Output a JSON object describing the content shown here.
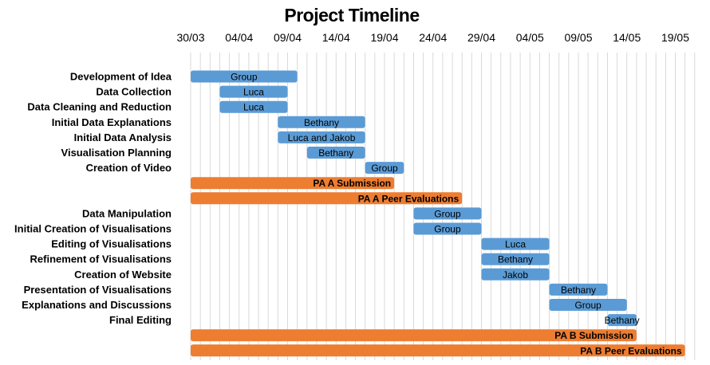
{
  "chart_data": {
    "type": "bar",
    "orientation": "horizontal-gantt",
    "title": "Project Timeline",
    "x_axis_position": "top",
    "xlim": [
      "30/03",
      "21/05"
    ],
    "x_ticks": [
      "30/03",
      "04/04",
      "09/04",
      "14/04",
      "19/04",
      "24/04",
      "29/04",
      "04/05",
      "09/05",
      "14/05",
      "19/05"
    ],
    "grid": "daily vertical gridlines",
    "tasks": [
      {
        "name": "Development of Idea",
        "start": "30/03",
        "end": "10/04",
        "label": "Group",
        "kind": "task",
        "label_align": "center"
      },
      {
        "name": "Data Collection",
        "start": "02/04",
        "end": "09/04",
        "label": "Luca",
        "kind": "task",
        "label_align": "center"
      },
      {
        "name": "Data Cleaning and Reduction",
        "start": "02/04",
        "end": "09/04",
        "label": "Luca",
        "kind": "task",
        "label_align": "center"
      },
      {
        "name": "Initial Data Explanations",
        "start": "08/04",
        "end": "17/04",
        "label": "Bethany",
        "kind": "task",
        "label_align": "center"
      },
      {
        "name": "Initial Data Analysis",
        "start": "08/04",
        "end": "17/04",
        "label": "Luca and Jakob",
        "kind": "task",
        "label_align": "center"
      },
      {
        "name": "Visualisation Planning",
        "start": "11/04",
        "end": "17/04",
        "label": "Bethany",
        "kind": "task",
        "label_align": "center"
      },
      {
        "name": "Creation of Video",
        "start": "17/04",
        "end": "21/04",
        "label": "Group",
        "kind": "task",
        "label_align": "center"
      },
      {
        "name": "",
        "start": "30/03",
        "end": "20/04",
        "label": "PA A Submission",
        "kind": "deadline",
        "label_align": "end"
      },
      {
        "name": "",
        "start": "30/03",
        "end": "27/04",
        "label": "PA A Peer Evaluations",
        "kind": "deadline",
        "label_align": "end"
      },
      {
        "name": "Data Manipulation",
        "start": "22/04",
        "end": "29/04",
        "label": "Group",
        "kind": "task",
        "label_align": "center"
      },
      {
        "name": "Initial Creation of Visualisations",
        "start": "22/04",
        "end": "29/04",
        "label": "Group",
        "kind": "task",
        "label_align": "center"
      },
      {
        "name": "Editing of Visualisations",
        "start": "29/04",
        "end": "06/05",
        "label": "Luca",
        "kind": "task",
        "label_align": "center"
      },
      {
        "name": "Refinement of Visualisations",
        "start": "29/04",
        "end": "06/05",
        "label": "Bethany",
        "kind": "task",
        "label_align": "center"
      },
      {
        "name": "Creation of Website",
        "start": "29/04",
        "end": "06/05",
        "label": "Jakob",
        "kind": "task",
        "label_align": "center"
      },
      {
        "name": "Presentation of Visualisations",
        "start": "06/05",
        "end": "12/05",
        "label": "Bethany",
        "kind": "task",
        "label_align": "center"
      },
      {
        "name": "Explanations and Discussions",
        "start": "06/05",
        "end": "14/05",
        "label": "Group",
        "kind": "task",
        "label_align": "center"
      },
      {
        "name": "Final Editing",
        "start": "12/05",
        "end": "15/05",
        "label": "Bethany",
        "kind": "task",
        "label_align": "center"
      },
      {
        "name": "",
        "start": "30/03",
        "end": "15/05",
        "label": "PA B Submission",
        "kind": "deadline",
        "label_align": "end"
      },
      {
        "name": "",
        "start": "30/03",
        "end": "20/05",
        "label": "PA B Peer Evaluations",
        "kind": "deadline",
        "label_align": "end"
      }
    ]
  },
  "colors": {
    "task": "#5b9bd5",
    "deadline": "#ed7d31",
    "grid": "#d9d9d9"
  }
}
